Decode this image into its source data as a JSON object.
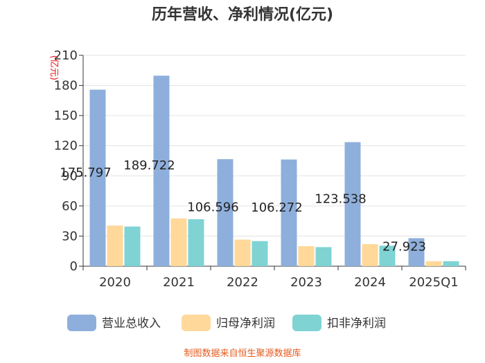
{
  "chart_data": {
    "type": "bar",
    "title": "历年营收、净利情况(亿元)",
    "unit_label": "(亿元)",
    "categories": [
      "2020",
      "2021",
      "2022",
      "2023",
      "2024",
      "2025Q1"
    ],
    "ylim": [
      0,
      210
    ],
    "yticks": [
      0,
      30,
      60,
      90,
      120,
      150,
      180,
      210
    ],
    "series": [
      {
        "name": "营业总收入",
        "color": "#8eafdb",
        "values": [
          175.797,
          189.722,
          106.596,
          106.272,
          123.538,
          27.923
        ],
        "labels": [
          "175.797",
          "189.722",
          "106.596",
          "106.272",
          "123.538",
          "27.923"
        ]
      },
      {
        "name": "归母净利润",
        "color": "#ffd89a",
        "values": [
          40.5,
          47.5,
          26.5,
          20.0,
          22.0,
          5.0
        ]
      },
      {
        "name": "扣非净利润",
        "color": "#7fd3d3",
        "values": [
          39.5,
          46.8,
          25.0,
          19.0,
          20.5,
          5.0
        ]
      }
    ],
    "legend_position": "bottom",
    "grid": true
  },
  "source": "制图数据来自恒生聚源数据库"
}
